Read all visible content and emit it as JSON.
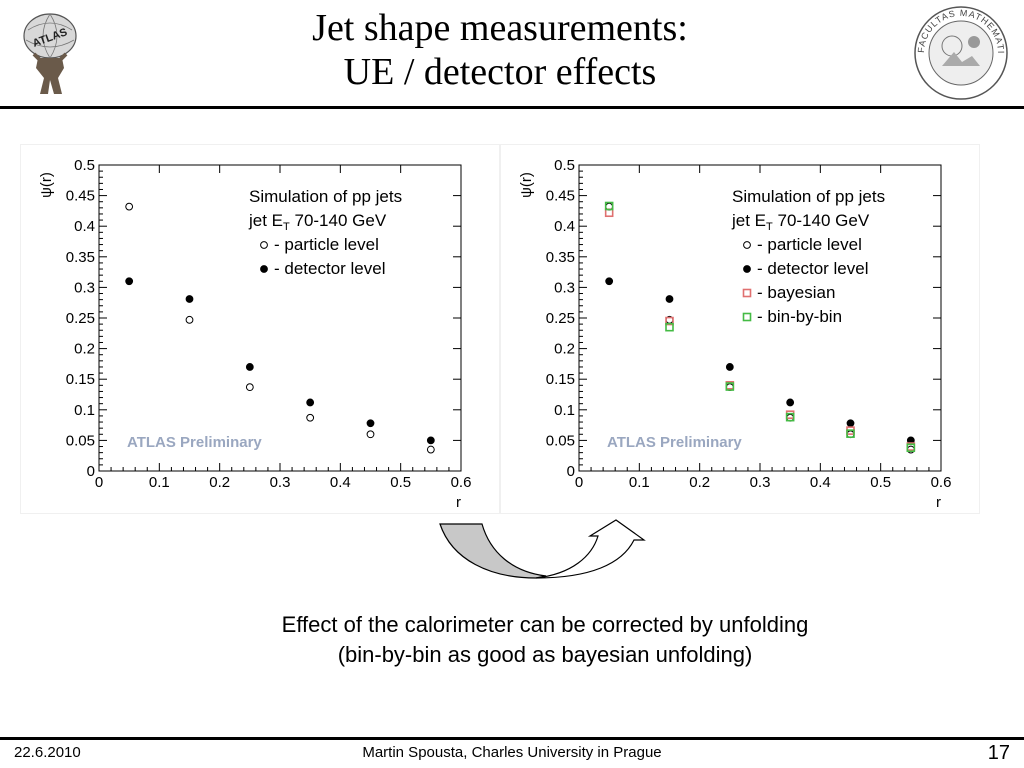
{
  "slide": {
    "title_line1": "Jet shape measurements:",
    "title_line2": "UE / detector effects",
    "caption_line1": "Effect of the calorimeter can be corrected by unfolding",
    "caption_line2": "(bin-by-bin as good as bayesian unfolding)",
    "footer": {
      "date": "22.6.2010",
      "author": "Martin Spousta,  Charles University in Prague",
      "page": "17"
    },
    "logo_left_text": "ATLAS",
    "logo_right_text": "FACULTAS MATHEMATICA PHYSICAQUE",
    "arrow_icon": "curved-arrow-icon"
  },
  "chart_data": [
    {
      "type": "scatter",
      "title": "",
      "xlabel": "r",
      "ylabel": "ψ(r)",
      "xlim": [
        0,
        0.6
      ],
      "ylim": [
        0,
        0.5
      ],
      "xticks": [
        "0",
        "0.1",
        "0.2",
        "0.3",
        "0.4",
        "0.5",
        "0.6"
      ],
      "yticks": [
        "0",
        "0.05",
        "0.1",
        "0.15",
        "0.2",
        "0.25",
        "0.3",
        "0.35",
        "0.4",
        "0.45",
        "0.5"
      ],
      "grid": false,
      "legend_header_line1": "Simulation of pp jets",
      "legend_header_line2_pre": "jet E",
      "legend_header_line2_sub": "T",
      "legend_header_line2_post": " 70-140 GeV",
      "legend_placement": "top-right",
      "watermark": "ATLAS Preliminary",
      "series": [
        {
          "name": "- particle level",
          "marker": "open-circle",
          "color": "#000000",
          "x": [
            0.05,
            0.15,
            0.25,
            0.35,
            0.45,
            0.55
          ],
          "y": [
            0.432,
            0.247,
            0.137,
            0.087,
            0.06,
            0.035
          ]
        },
        {
          "name": "- detector level",
          "marker": "filled-circle",
          "color": "#000000",
          "x": [
            0.05,
            0.15,
            0.25,
            0.35,
            0.45,
            0.55
          ],
          "y": [
            0.31,
            0.281,
            0.17,
            0.112,
            0.078,
            0.05
          ]
        }
      ]
    },
    {
      "type": "scatter",
      "title": "",
      "xlabel": "r",
      "ylabel": "ψ(r)",
      "xlim": [
        0,
        0.6
      ],
      "ylim": [
        0,
        0.5
      ],
      "xticks": [
        "0",
        "0.1",
        "0.2",
        "0.3",
        "0.4",
        "0.5",
        "0.6"
      ],
      "yticks": [
        "0",
        "0.05",
        "0.1",
        "0.15",
        "0.2",
        "0.25",
        "0.3",
        "0.35",
        "0.4",
        "0.45",
        "0.5"
      ],
      "grid": false,
      "legend_header_line1": "Simulation of pp jets",
      "legend_header_line2_pre": "jet E",
      "legend_header_line2_sub": "T",
      "legend_header_line2_post": " 70-140 GeV",
      "legend_placement": "top-right",
      "watermark": "ATLAS Preliminary",
      "series": [
        {
          "name": "- particle level",
          "marker": "open-circle",
          "color": "#000000",
          "x": [
            0.05,
            0.15,
            0.25,
            0.35,
            0.45,
            0.55
          ],
          "y": [
            0.432,
            0.247,
            0.137,
            0.087,
            0.06,
            0.035
          ]
        },
        {
          "name": "- detector level",
          "marker": "filled-circle",
          "color": "#000000",
          "x": [
            0.05,
            0.15,
            0.25,
            0.35,
            0.45,
            0.55
          ],
          "y": [
            0.31,
            0.281,
            0.17,
            0.112,
            0.078,
            0.05
          ]
        },
        {
          "name": "- bayesian",
          "marker": "open-square",
          "color": "#e07070",
          "x": [
            0.05,
            0.15,
            0.25,
            0.35,
            0.45,
            0.55
          ],
          "y": [
            0.422,
            0.245,
            0.14,
            0.092,
            0.066,
            0.04
          ]
        },
        {
          "name": "- bin-by-bin",
          "marker": "open-square",
          "color": "#44bb44",
          "x": [
            0.05,
            0.15,
            0.25,
            0.35,
            0.45,
            0.55
          ],
          "y": [
            0.433,
            0.235,
            0.138,
            0.088,
            0.061,
            0.038
          ]
        }
      ]
    }
  ]
}
